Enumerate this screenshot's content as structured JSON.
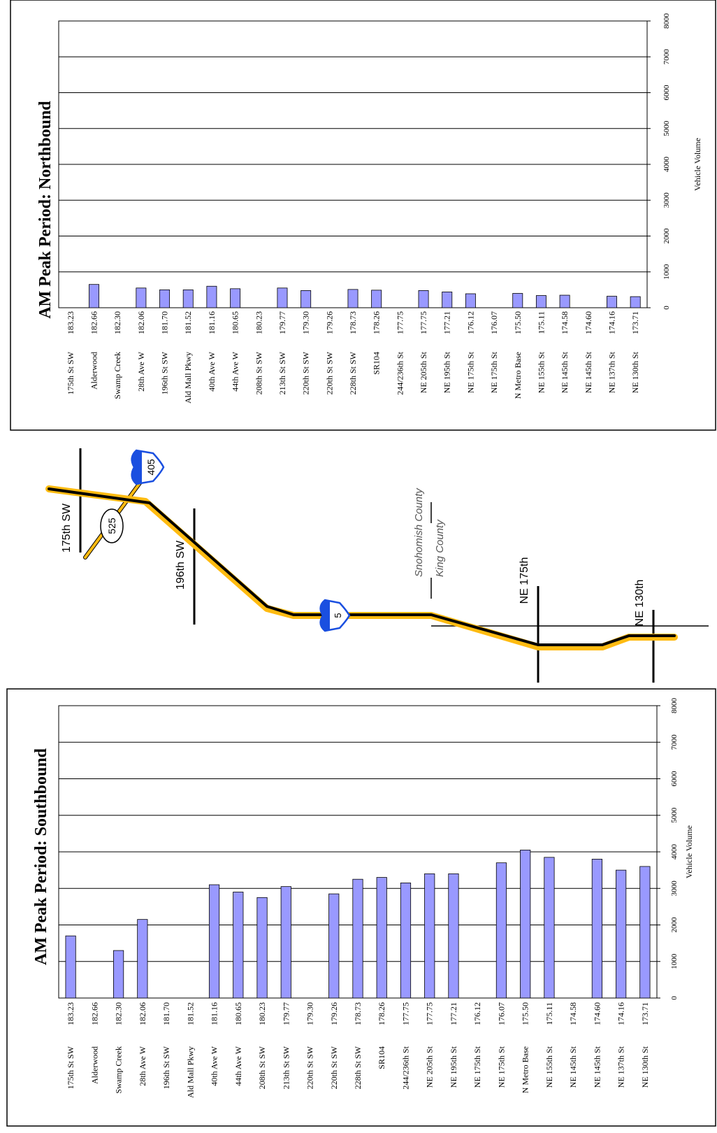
{
  "colors": {
    "bar_fill": "#9999ff",
    "bar_stroke": "#000000",
    "road_yellow": "#ffbb11",
    "road_black": "#000000",
    "shield_blue": "#1a4fe0"
  },
  "chart_data": [
    {
      "type": "bar",
      "orientation": "horizontal",
      "title": "AM Peak Period: Northbound",
      "xlabel": "Vehicle Volume",
      "xlim": [
        0,
        8000
      ],
      "ticks": [
        "0",
        "1000",
        "2000",
        "3000",
        "4000",
        "5000",
        "6000",
        "7000",
        "8000"
      ],
      "grid": true,
      "categories": [
        "175th St SW",
        "Alderwood",
        "Swamp Creek",
        "28th Ave W",
        "196th St SW",
        "Ald Mall Pkwy",
        "40th Ave W",
        "44th Ave W",
        "208th St SW",
        "213th St SW",
        "220th St SW",
        "220th St SW",
        "228th St SW",
        "SR104",
        "244/236th St",
        "NE 205th St",
        "NE 195th St",
        "NE 175th St",
        "NE 175th St",
        "N Metro Base",
        "NE 155th St",
        "NE 145th St",
        "NE 145th St",
        "NE 137th St",
        "NE 130th St"
      ],
      "mileposts": [
        "183.23",
        "182.66",
        "182.30",
        "182.06",
        "181.70",
        "181.52",
        "181.16",
        "180.65",
        "180.23",
        "179.77",
        "179.30",
        "179.26",
        "178.73",
        "178.26",
        "177.75",
        "177.75",
        "177.21",
        "176.12",
        "176.07",
        "175.50",
        "175.11",
        "174.58",
        "174.60",
        "174.16",
        "173.71"
      ],
      "values": [
        0,
        650,
        0,
        550,
        500,
        500,
        600,
        530,
        0,
        550,
        480,
        0,
        510,
        490,
        0,
        480,
        440,
        390,
        0,
        400,
        340,
        350,
        0,
        320,
        310
      ]
    },
    {
      "type": "bar",
      "orientation": "horizontal",
      "title": "AM Peak Period:  Southbound",
      "xlabel": "Vehicle Volume",
      "xlim": [
        0,
        8000
      ],
      "ticks": [
        "0",
        "1000",
        "2000",
        "3000",
        "4000",
        "5000",
        "6000",
        "7000",
        "8000"
      ],
      "grid": true,
      "categories": [
        "175th St SW",
        "Alderwood",
        "Swamp Creek",
        "28th Ave W",
        "196th St SW",
        "Ald Mall Pkwy",
        "40th Ave W",
        "44th Ave W",
        "208th St SW",
        "213th St SW",
        "220th St SW",
        "220th St SW",
        "228th St SW",
        "SR104",
        "244/236th St",
        "NE 205th St",
        "NE 195th St",
        "NE 175th St",
        "NE 175th St",
        "N Metro Base",
        "NE 155th St",
        "NE 145th St",
        "NE 145th St",
        "NE 137th St",
        "NE 130th St"
      ],
      "mileposts": [
        "183.23",
        "182.66",
        "182.30",
        "182.06",
        "181.70",
        "181.52",
        "181.16",
        "180.65",
        "180.23",
        "179.77",
        "179.30",
        "179.26",
        "178.73",
        "178.26",
        "177.75",
        "177.75",
        "177.21",
        "176.12",
        "176.07",
        "175.50",
        "175.11",
        "174.58",
        "174.60",
        "174.16",
        "173.71"
      ],
      "values": [
        1700,
        0,
        1300,
        2150,
        0,
        0,
        3100,
        2900,
        2750,
        3050,
        0,
        2850,
        3250,
        3300,
        3150,
        3400,
        3400,
        0,
        3700,
        4050,
        3850,
        0,
        3800,
        3500,
        3600
      ]
    }
  ],
  "map": {
    "labels": {
      "road_175": "175th SW",
      "road_196": "196th SW",
      "road_ne175": "NE 175th",
      "road_ne130": "NE 130th",
      "county_north": "Snohomish County",
      "county_south": "King County"
    },
    "shields": {
      "i405": "405",
      "sr525": "525",
      "i5": "5"
    }
  }
}
